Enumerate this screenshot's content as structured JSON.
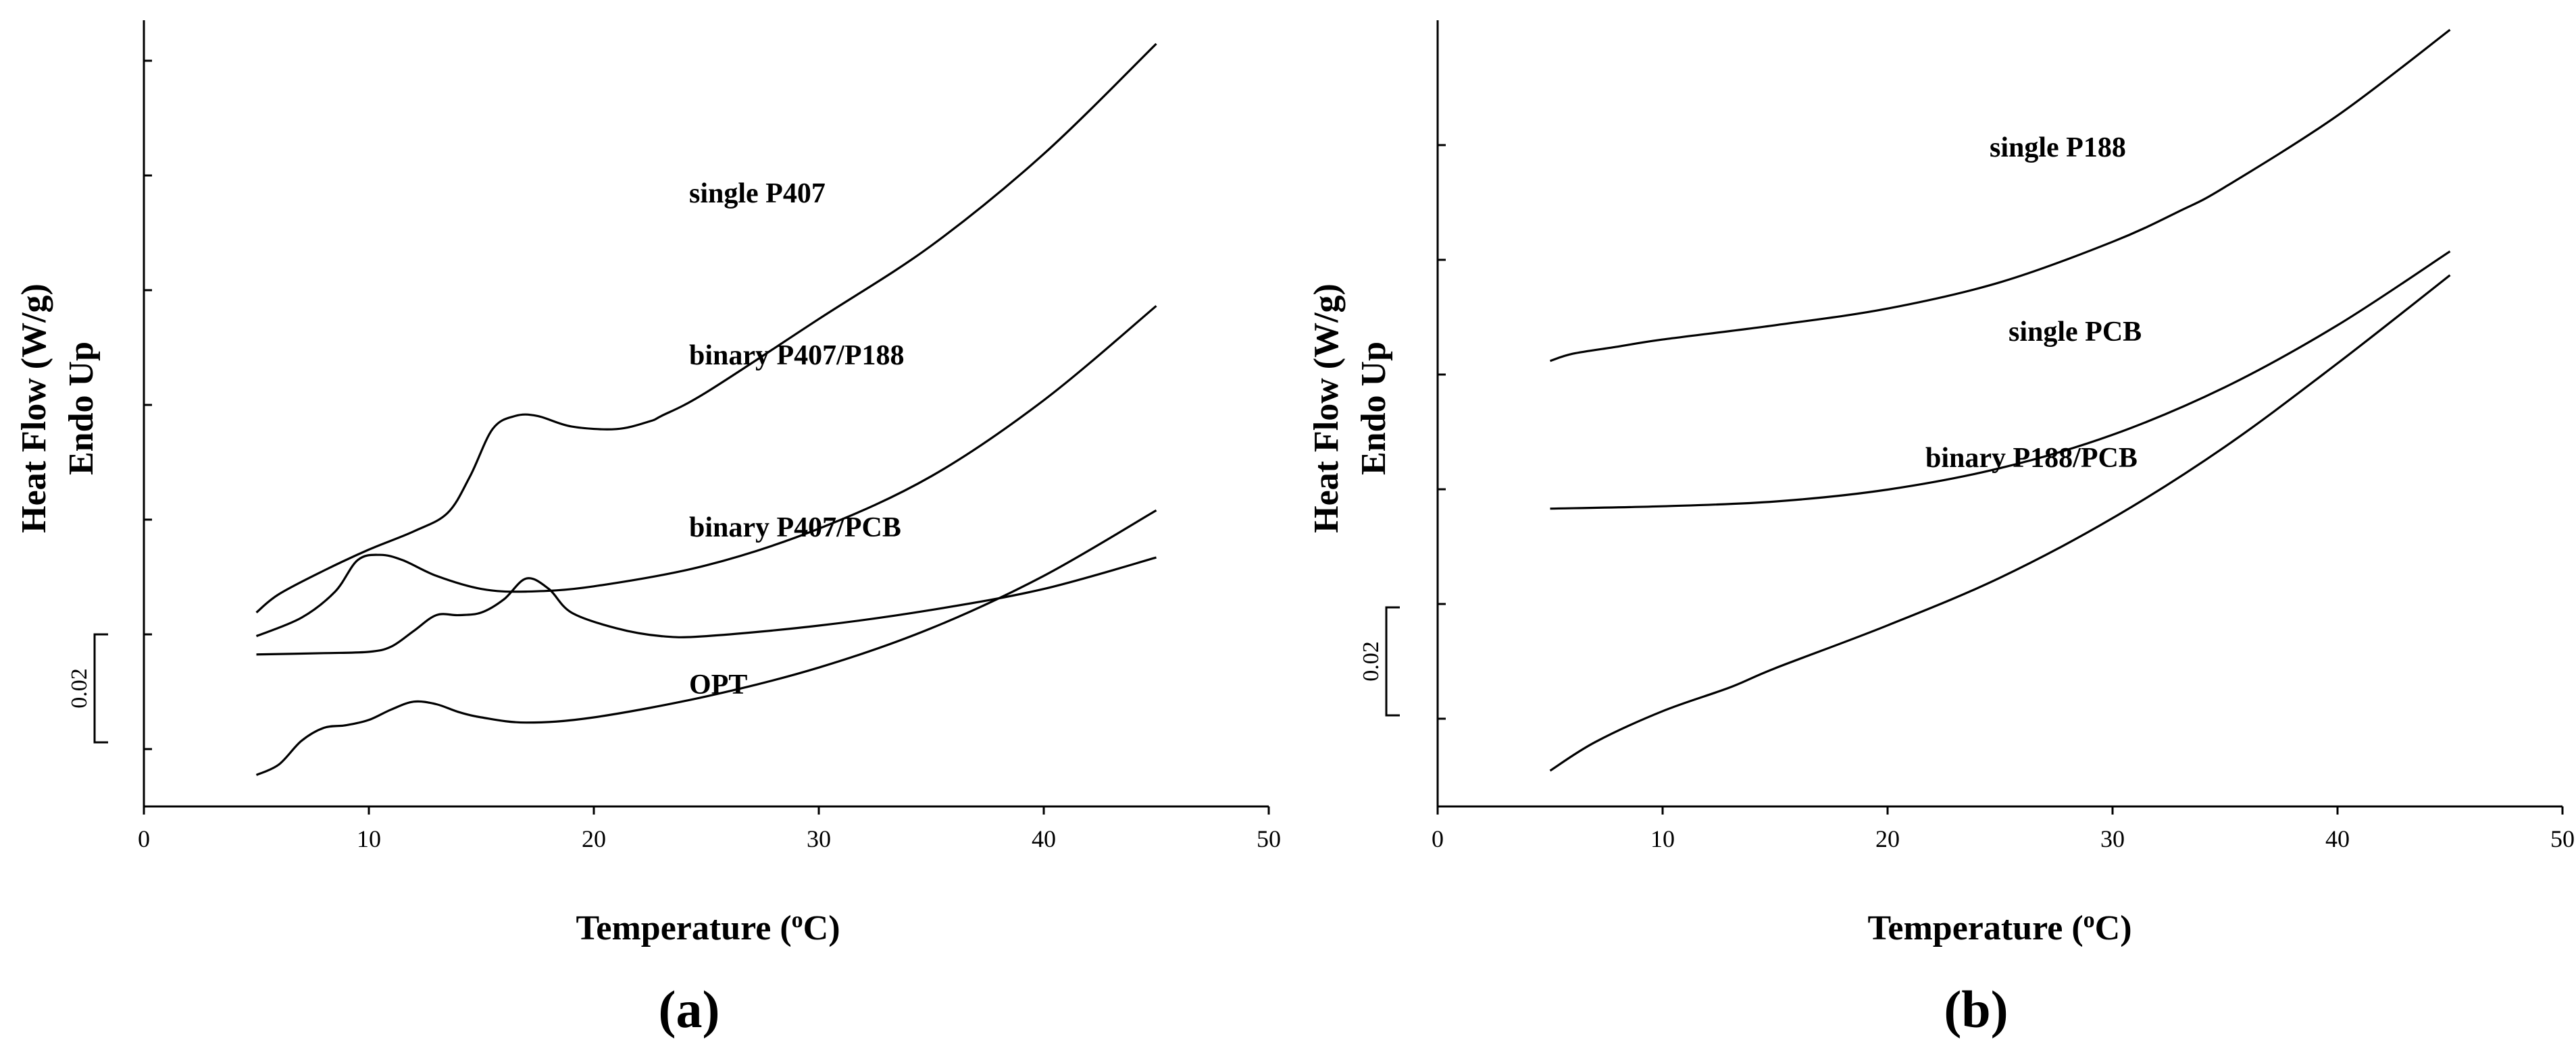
{
  "chart_data": [
    {
      "type": "line",
      "panel_label": "(a)",
      "xlabel": "Temperature (",
      "xlabel_sup": "o",
      "xlabel_end": "C)",
      "ylabel_line1": "Heat Flow (W/g)",
      "ylabel_line2": "Endo Up",
      "xlim": [
        0,
        50
      ],
      "xticks": [
        "0",
        "10",
        "20",
        "30",
        "40",
        "50"
      ],
      "y_scale_bar_label": "0.02",
      "yticks_unlabeled": true,
      "grid": false,
      "series": [
        {
          "name": "single P407",
          "x": [
            5,
            6,
            8,
            10,
            12,
            13.5,
            14.5,
            15.5,
            16.5,
            17.5,
            19,
            21,
            22.5,
            23,
            25,
            30,
            35,
            40,
            45
          ],
          "y": [
            6.4,
            7.1,
            8.0,
            8.8,
            9.5,
            10.2,
            11.6,
            13.4,
            13.9,
            13.9,
            13.5,
            13.4,
            13.7,
            13.9,
            14.8,
            17.6,
            20.4,
            23.9,
            28.1
          ]
        },
        {
          "name": "binary P407/P188",
          "x": [
            5,
            7,
            8.5,
            9.5,
            10.5,
            11.5,
            13,
            15,
            17,
            20,
            25,
            30,
            35,
            40,
            45
          ],
          "y": [
            5.5,
            6.2,
            7.2,
            8.4,
            8.6,
            8.4,
            7.8,
            7.3,
            7.2,
            7.4,
            8.2,
            9.6,
            11.6,
            14.5,
            18.1
          ]
        },
        {
          "name": "binary P407/PCB",
          "x": [
            5,
            8,
            10,
            11,
            12,
            13,
            14,
            15,
            16,
            17,
            18,
            19,
            21,
            23,
            25,
            30,
            35,
            40,
            45
          ],
          "y": [
            4.8,
            4.85,
            4.9,
            5.1,
            5.7,
            6.3,
            6.3,
            6.4,
            6.9,
            7.7,
            7.3,
            6.4,
            5.8,
            5.5,
            5.5,
            5.9,
            6.5,
            7.3,
            8.5
          ]
        },
        {
          "name": "OPT",
          "x": [
            5,
            6,
            7,
            8,
            9,
            10,
            11,
            12,
            13,
            14,
            15,
            17,
            20,
            25,
            30,
            35,
            40,
            45
          ],
          "y": [
            0.2,
            0.6,
            1.5,
            2.0,
            2.1,
            2.3,
            2.7,
            3.0,
            2.9,
            2.6,
            2.4,
            2.2,
            2.4,
            3.2,
            4.3,
            5.8,
            7.8,
            10.3
          ]
        }
      ]
    },
    {
      "type": "line",
      "panel_label": "(b)",
      "xlabel": "Temperature (",
      "xlabel_sup": "o",
      "xlabel_end": "C)",
      "ylabel_line1": "Heat Flow (W/g)",
      "ylabel_line2": "Endo Up",
      "xlim": [
        0,
        50
      ],
      "xticks": [
        "0",
        "10",
        "20",
        "30",
        "40",
        "50"
      ],
      "y_scale_bar_label": "0.02",
      "yticks_unlabeled": true,
      "grid": false,
      "series": [
        {
          "name": "single P188",
          "x": [
            5,
            6,
            8,
            10,
            15,
            20,
            25,
            30,
            33,
            35,
            40,
            45
          ],
          "y": [
            17.7,
            18.0,
            18.3,
            18.6,
            19.2,
            19.9,
            21.0,
            22.7,
            24.0,
            25.0,
            28.0,
            31.6
          ]
        },
        {
          "name": "single PCB",
          "x": [
            5,
            10,
            15,
            20,
            25,
            30,
            35,
            40,
            45
          ],
          "y": [
            11.5,
            11.6,
            11.8,
            12.3,
            13.2,
            14.6,
            16.6,
            19.2,
            22.3
          ]
        },
        {
          "name": "binary P188/PCB",
          "x": [
            5,
            7,
            10,
            13,
            15,
            20,
            25,
            30,
            35,
            40,
            45
          ],
          "y": [
            0.5,
            1.7,
            3.0,
            4.0,
            4.8,
            6.6,
            8.6,
            11.1,
            14.1,
            17.6,
            21.3
          ]
        }
      ]
    }
  ]
}
